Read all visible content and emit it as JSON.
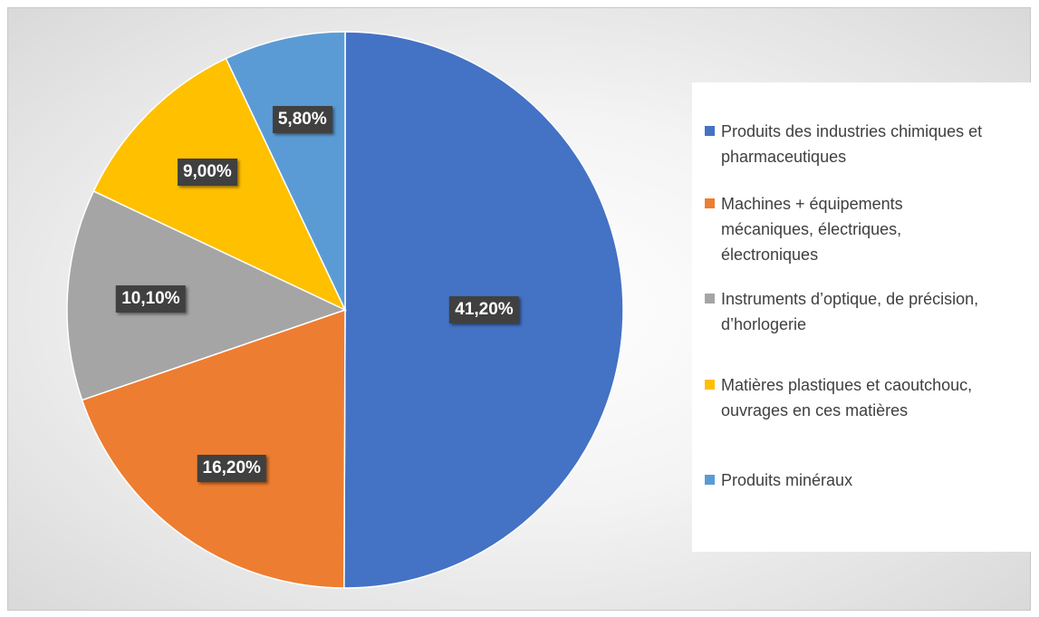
{
  "chart_data": {
    "type": "pie",
    "categories": [
      "Produits des industries chimiques et pharmaceutiques",
      "Machines + équipements mécaniques, électriques, électroniques",
      "Instruments d’optique, de précision, d’horlogerie",
      "Matières plastiques et caoutchouc, ouvrages en ces matières",
      "Produits minéraux"
    ],
    "values": [
      41.2,
      16.2,
      10.1,
      9.0,
      5.8
    ],
    "value_labels": [
      "41,20%",
      "16,20%",
      "10,10%",
      "9,00%",
      "5,80%"
    ],
    "colors": [
      "#4472c4",
      "#ed7d31",
      "#a5a5a5",
      "#ffc000",
      "#5b9bd5"
    ],
    "legend": "right"
  }
}
